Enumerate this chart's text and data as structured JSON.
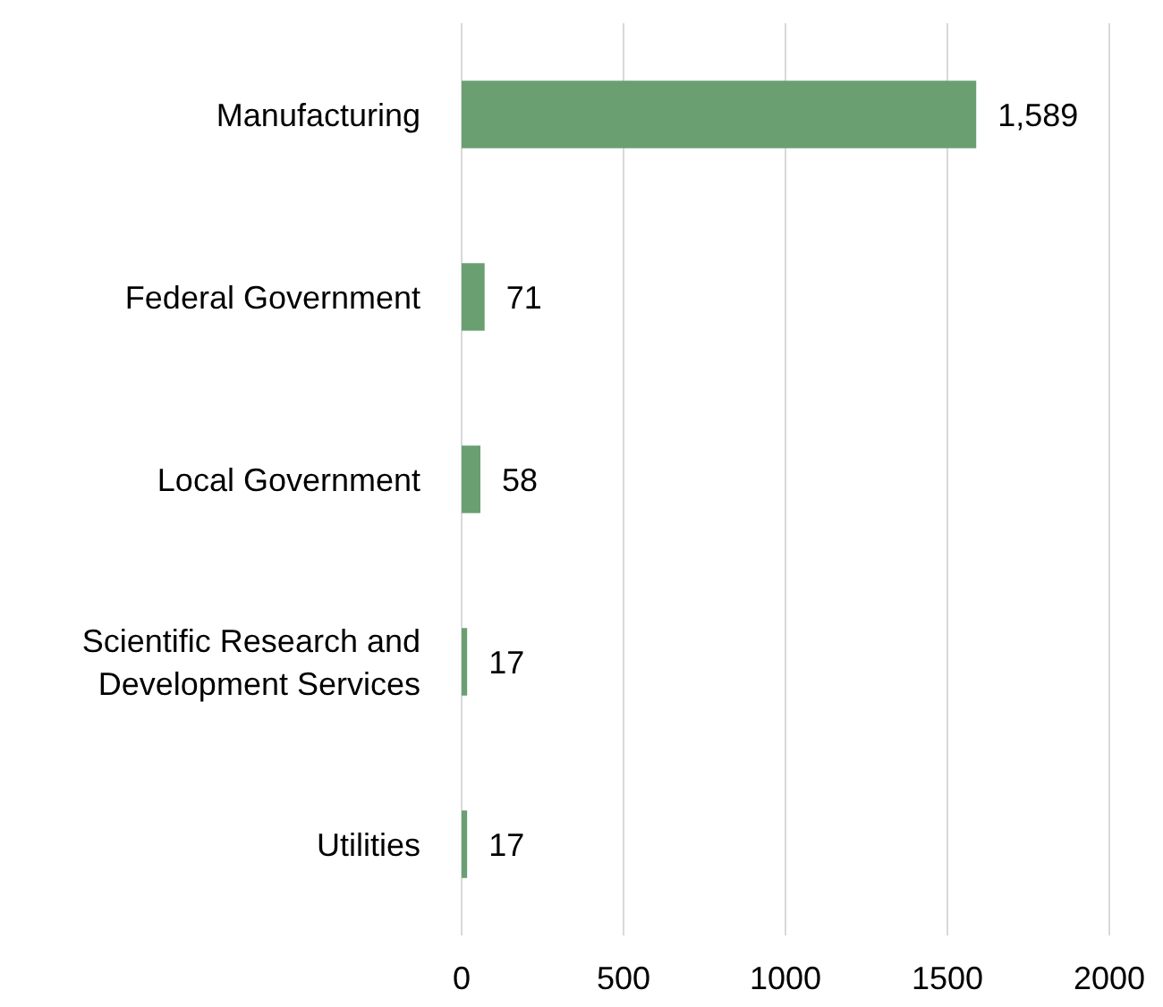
{
  "chart_data": {
    "type": "bar",
    "orientation": "horizontal",
    "categories": [
      "Manufacturing",
      "Federal Government",
      "Local Government",
      "Scientific Research and Development Services",
      "Utilities"
    ],
    "values": [
      1589,
      71,
      58,
      17,
      17
    ],
    "value_labels": [
      "1,589",
      "71",
      "58",
      "17",
      "17"
    ],
    "color": "#6a9f72",
    "xlim": [
      0,
      2000
    ],
    "xticks": [
      0,
      500,
      1000,
      1500,
      2000
    ],
    "grid": "x"
  }
}
